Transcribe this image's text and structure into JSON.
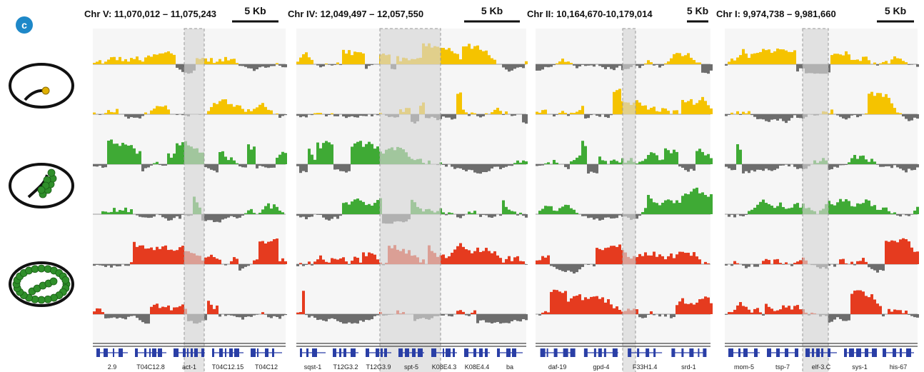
{
  "figure": {
    "panel_label": "c",
    "colors": {
      "yellow": "#f5c300",
      "green": "#3faa35",
      "red": "#e53b1f",
      "gray": "#6d6d6d",
      "highlight": "#d6d6d6",
      "gene": "#2a3fa6",
      "track_bg": "#f6f6f6"
    },
    "stages": [
      {
        "name": "comma-stage-embryo",
        "track_color": "yellow"
      },
      {
        "name": "two-fold-embryo",
        "track_color": "green"
      },
      {
        "name": "l1-larva",
        "track_color": "red"
      }
    ],
    "panels": [
      {
        "title": "Chr V: 11,070,012 – 11,075,243",
        "scale_label": "5 Kb",
        "genes": [
          "2.9",
          "T04C12.8",
          "act-1",
          "T04C12.15",
          "T04C12"
        ]
      },
      {
        "title": "Chr IV: 12,049,497 – 12,057,550",
        "scale_label": "5 Kb",
        "genes": [
          "sqst-1",
          "T12G3.2",
          "T12G3.9",
          "spt-5",
          "K08E4.3",
          "K08E4.4",
          "ba"
        ]
      },
      {
        "title": "Chr II: 10,164,670-10,179,014",
        "scale_label": "5 Kb",
        "genes": [
          "daf-19",
          "gpd-4",
          "F33H1.4",
          "srd-1"
        ]
      },
      {
        "title": "Chr I: 9,974,738 – 9,981,660",
        "scale_label": "5 Kb",
        "genes": [
          "mom-5",
          "tsp-7",
          "elf-3.C",
          "sys-1",
          "his-67"
        ]
      }
    ]
  }
}
